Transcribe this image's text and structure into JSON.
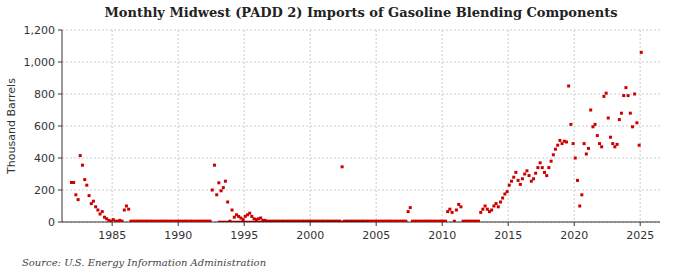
{
  "chart_data": {
    "type": "scatter",
    "title": "Monthly Midwest (PADD 2) Imports of Gasoline Blending Components",
    "y_label": "Thousand Barrels",
    "annotations": [
      "Source: U.S. Energy Information Administration"
    ],
    "xlim": [
      1981.2,
      2026.5
    ],
    "xticks": [
      1985,
      1990,
      1995,
      2000,
      2005,
      2010,
      2015,
      2020,
      2025
    ],
    "ylim": [
      0,
      1200
    ],
    "yticks": [
      0,
      200,
      400,
      600,
      800,
      {
        "value": 1000,
        "label": "1,000"
      },
      {
        "value": 1200,
        "label": "1,200"
      }
    ],
    "grid": true,
    "series": [
      {
        "type": "scatter",
        "marker": "square",
        "color": "#cc0000",
        "x": [
          1981.92,
          1982.08,
          1982.25,
          1982.42,
          1982.58,
          1982.75,
          1982.92,
          1983.08,
          1983.25,
          1983.42,
          1983.58,
          1983.75,
          1983.92,
          1984.08,
          1984.25,
          1984.42,
          1984.58,
          1984.75,
          1984.92,
          1985.08,
          1985.25,
          1985.42,
          1985.58,
          1985.75,
          1985.92,
          1986.08,
          1986.25,
          1986.42,
          1986.58,
          1986.75,
          1986.92,
          1987.08,
          1987.25,
          1987.42,
          1987.58,
          1987.75,
          1987.92,
          1988.08,
          1988.25,
          1988.42,
          1988.58,
          1988.75,
          1988.92,
          1989.08,
          1989.25,
          1989.42,
          1989.58,
          1989.75,
          1989.92,
          1990.08,
          1990.25,
          1990.42,
          1990.58,
          1990.75,
          1990.92,
          1991.08,
          1991.25,
          1991.42,
          1991.58,
          1991.75,
          1991.92,
          1992.08,
          1992.25,
          1992.42,
          1992.58,
          1992.75,
          1992.92,
          1993.08,
          1993.25,
          1993.42,
          1993.58,
          1993.75,
          1993.92,
          1994.08,
          1994.25,
          1994.42,
          1994.58,
          1994.75,
          1994.92,
          1995.08,
          1995.25,
          1995.42,
          1995.58,
          1995.75,
          1995.92,
          1996.08,
          1996.25,
          1996.42,
          1996.58,
          1996.75,
          1996.92,
          1997.08,
          1997.25,
          1997.42,
          1997.58,
          1997.75,
          1997.92,
          1998.08,
          1998.25,
          1998.42,
          1998.58,
          1998.75,
          1998.92,
          1999.08,
          1999.25,
          1999.42,
          1999.58,
          1999.75,
          1999.92,
          2000.08,
          2000.25,
          2000.42,
          2000.58,
          2000.75,
          2000.92,
          2001.08,
          2001.25,
          2001.42,
          2001.58,
          2001.75,
          2001.92,
          2002.08,
          2002.25,
          2002.42,
          2002.58,
          2002.75,
          2002.92,
          2003.08,
          2003.25,
          2003.42,
          2003.58,
          2003.75,
          2003.92,
          2004.08,
          2004.25,
          2004.42,
          2004.58,
          2004.75,
          2004.92,
          2005.08,
          2005.25,
          2005.42,
          2005.58,
          2005.75,
          2005.92,
          2006.08,
          2006.25,
          2006.42,
          2006.58,
          2006.75,
          2006.92,
          2007.08,
          2007.25,
          2007.42,
          2007.58,
          2007.75,
          2007.92,
          2008.08,
          2008.25,
          2008.42,
          2008.58,
          2008.75,
          2008.92,
          2009.08,
          2009.25,
          2009.42,
          2009.58,
          2009.75,
          2009.92,
          2010.08,
          2010.25,
          2010.42,
          2010.58,
          2010.75,
          2010.92,
          2011.08,
          2011.25,
          2011.42,
          2011.58,
          2011.75,
          2011.92,
          2012.08,
          2012.25,
          2012.42,
          2012.58,
          2012.75,
          2012.92,
          2013.08,
          2013.25,
          2013.42,
          2013.58,
          2013.75,
          2013.92,
          2014.08,
          2014.25,
          2014.42,
          2014.58,
          2014.75,
          2014.92,
          2015.08,
          2015.25,
          2015.42,
          2015.58,
          2015.75,
          2015.92,
          2016.08,
          2016.25,
          2016.42,
          2016.58,
          2016.75,
          2016.92,
          2017.08,
          2017.25,
          2017.42,
          2017.58,
          2017.75,
          2017.92,
          2018.08,
          2018.25,
          2018.42,
          2018.58,
          2018.75,
          2018.92,
          2019.08,
          2019.25,
          2019.42,
          2019.58,
          2019.75,
          2019.92,
          2020.08,
          2020.25,
          2020.42,
          2020.58,
          2020.75,
          2020.92,
          2021.08,
          2021.25,
          2021.42,
          2021.58,
          2021.75,
          2021.92,
          2022.08,
          2022.25,
          2022.42,
          2022.58,
          2022.75,
          2022.92,
          2023.08,
          2023.25,
          2023.42,
          2023.58,
          2023.75,
          2023.92,
          2024.08,
          2024.25,
          2024.42,
          2024.58,
          2024.75,
          2024.92,
          2025.08
        ],
        "values": [
          247,
          247,
          170,
          140,
          415,
          355,
          265,
          230,
          165,
          115,
          130,
          95,
          75,
          50,
          65,
          30,
          20,
          10,
          5,
          15,
          5,
          5,
          10,
          5,
          75,
          100,
          80,
          5,
          5,
          5,
          5,
          5,
          5,
          5,
          5,
          5,
          5,
          5,
          5,
          5,
          5,
          5,
          5,
          5,
          5,
          5,
          5,
          5,
          5,
          5,
          5,
          5,
          5,
          5,
          5,
          5,
          5,
          5,
          5,
          5,
          5,
          5,
          5,
          5,
          200,
          355,
          170,
          245,
          195,
          215,
          255,
          125,
          5,
          75,
          30,
          45,
          35,
          25,
          15,
          35,
          45,
          55,
          35,
          20,
          15,
          20,
          25,
          10,
          10,
          5,
          5,
          5,
          5,
          5,
          5,
          5,
          5,
          5,
          5,
          5,
          5,
          5,
          5,
          5,
          5,
          5,
          5,
          5,
          5,
          5,
          5,
          5,
          5,
          5,
          5,
          5,
          5,
          5,
          5,
          5,
          5,
          5,
          5,
          345,
          5,
          5,
          5,
          5,
          5,
          5,
          5,
          5,
          5,
          5,
          5,
          5,
          5,
          5,
          5,
          5,
          5,
          5,
          5,
          5,
          5,
          5,
          5,
          5,
          5,
          5,
          5,
          5,
          5,
          65,
          90,
          5,
          5,
          5,
          5,
          5,
          5,
          5,
          5,
          5,
          5,
          5,
          5,
          5,
          5,
          5,
          5,
          65,
          80,
          60,
          5,
          75,
          110,
          95,
          5,
          5,
          5,
          5,
          5,
          5,
          5,
          5,
          60,
          80,
          100,
          80,
          65,
          75,
          100,
          115,
          95,
          125,
          150,
          175,
          190,
          230,
          255,
          280,
          310,
          260,
          235,
          270,
          300,
          320,
          290,
          255,
          270,
          305,
          340,
          370,
          340,
          310,
          290,
          340,
          380,
          420,
          455,
          480,
          510,
          490,
          505,
          500,
          850,
          610,
          490,
          400,
          260,
          100,
          170,
          490,
          425,
          460,
          700,
          595,
          610,
          540,
          490,
          470,
          785,
          805,
          650,
          530,
          490,
          470,
          485,
          640,
          680,
          790,
          840,
          790,
          680,
          595,
          800,
          620,
          480,
          1060
        ]
      },
      {
        "type": "line",
        "color": "#8B0000",
        "x": [
          1993.0,
          2004.5
        ],
        "values": [
          2,
          2
        ]
      }
    ]
  }
}
